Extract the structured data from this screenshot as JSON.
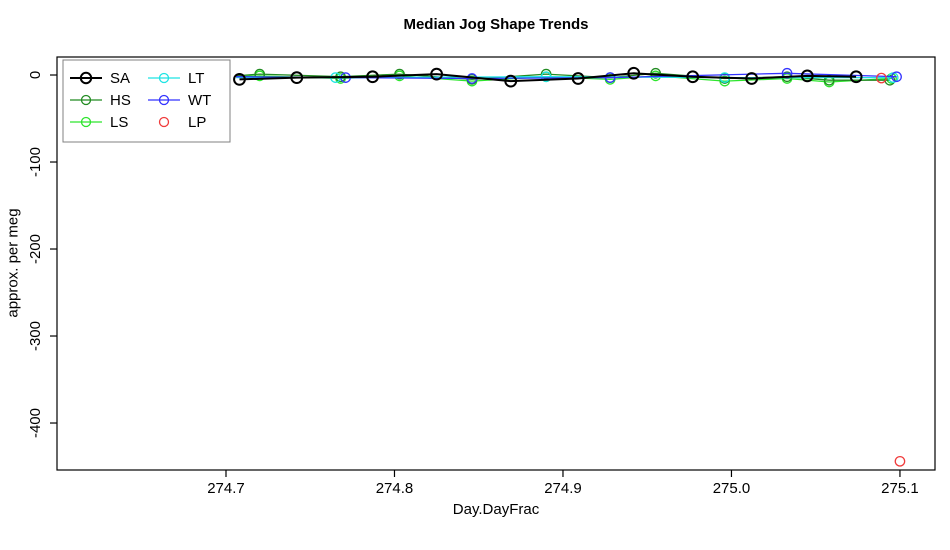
{
  "chart": {
    "title": "Median Jog Shape Trends",
    "xlabel": "Day.DayFrac",
    "ylabel": "approx. per meg"
  },
  "chart_data": {
    "type": "line",
    "title": "Median Jog Shape Trends",
    "xlabel": "Day.DayFrac",
    "ylabel": "approx. per meg",
    "xlim": [
      274.5997,
      275.1208
    ],
    "ylim": [
      -454,
      20.7
    ],
    "x_ticks": [
      274.7,
      274.8,
      274.9,
      275.0,
      275.1
    ],
    "x_tick_labels": [
      "274.7",
      "274.8",
      "274.9",
      "275.0",
      "275.1"
    ],
    "y_ticks": [
      0,
      -100,
      -200,
      -300,
      -400
    ],
    "y_tick_labels": [
      "0",
      "-100",
      "-200",
      "-300",
      "-400"
    ],
    "grid": false,
    "legend_position": "top-left",
    "box_color": "#000000",
    "series": [
      {
        "id": "SA",
        "label": "SA",
        "color": "#000000",
        "line": true,
        "bold": true,
        "points": [
          [
            274.708,
            -5
          ],
          [
            274.742,
            -3
          ],
          [
            274.787,
            -2
          ],
          [
            274.825,
            1
          ],
          [
            274.869,
            -7
          ],
          [
            274.909,
            -4
          ],
          [
            274.942,
            2
          ],
          [
            274.977,
            -2
          ],
          [
            275.012,
            -4
          ],
          [
            275.045,
            -1
          ],
          [
            275.074,
            -2
          ]
        ]
      },
      {
        "id": "HS",
        "label": "HS",
        "color": "#228B22",
        "line": true,
        "bold": false,
        "points": [
          [
            274.706,
            -1,
            0
          ],
          [
            274.72,
            1
          ],
          [
            274.768,
            -2
          ],
          [
            274.803,
            1
          ],
          [
            274.846,
            -5
          ],
          [
            274.89,
            1
          ],
          [
            274.928,
            -3
          ],
          [
            274.955,
            2
          ],
          [
            274.996,
            -4
          ],
          [
            275.033,
            -2
          ],
          [
            275.058,
            -6
          ],
          [
            275.094,
            -6
          ]
        ]
      },
      {
        "id": "LS",
        "label": "LS",
        "color": "#2DE52D",
        "line": true,
        "bold": false,
        "points": [
          [
            274.706,
            -2,
            0
          ],
          [
            274.72,
            -1
          ],
          [
            274.768,
            -4
          ],
          [
            274.803,
            -1
          ],
          [
            274.846,
            -7
          ],
          [
            274.89,
            -2
          ],
          [
            274.928,
            -5
          ],
          [
            274.955,
            -1
          ],
          [
            274.996,
            -7
          ],
          [
            275.033,
            -4
          ],
          [
            275.058,
            -8
          ],
          [
            275.095,
            -4
          ]
        ]
      },
      {
        "id": "LT",
        "label": "LT",
        "color": "#1FE4E4",
        "line": true,
        "bold": false,
        "points": [
          [
            274.706,
            -3,
            0
          ],
          [
            274.765,
            -3
          ],
          [
            274.89,
            -2
          ],
          [
            274.996,
            -3
          ],
          [
            275.096,
            -3
          ]
        ]
      },
      {
        "id": "WT",
        "label": "WT",
        "color": "#3333FF",
        "line": true,
        "bold": false,
        "points": [
          [
            274.706,
            -2,
            0
          ],
          [
            274.771,
            -3
          ],
          [
            274.846,
            -4
          ],
          [
            274.928,
            -3
          ],
          [
            275.033,
            2
          ],
          [
            275.098,
            -2
          ]
        ]
      },
      {
        "id": "LP",
        "label": "LP",
        "color": "#F03B3B",
        "line": false,
        "bold": false,
        "points": [
          [
            275.089,
            -3.5
          ],
          [
            275.1,
            -444
          ]
        ]
      }
    ],
    "legend_order": [
      "SA",
      "HS",
      "LS",
      "LT",
      "WT",
      "LP"
    ]
  }
}
